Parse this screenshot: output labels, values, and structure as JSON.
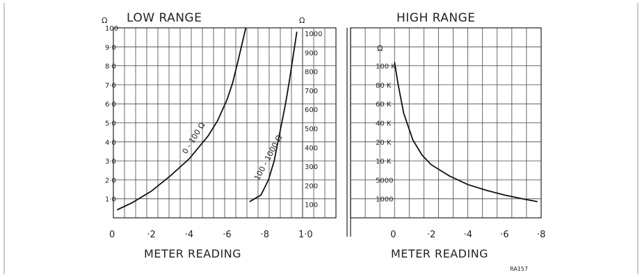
{
  "chart_data": [
    {
      "type": "line",
      "title": "LOW RANGE",
      "xlabel": "METER READING",
      "x_ticks": [
        "0",
        "·2",
        "·4",
        "·6",
        "·8",
        "1·0"
      ],
      "xlim": [
        0,
        1.0
      ],
      "ylim": [
        0,
        100
      ],
      "y_unit": "Ω",
      "y_ticks": [
        "1·0",
        "2·0",
        "3·0",
        "4·0",
        "5·0",
        "6·0",
        "7·0",
        "8·0",
        "9·0",
        "100"
      ],
      "y2_unit": "Ω",
      "y2_ticks": [
        "100",
        "200",
        "300",
        "400",
        "500",
        "600",
        "700",
        "800",
        "900",
        "1000"
      ],
      "grid": true,
      "series": [
        {
          "name": "0 - 100 Ω",
          "x": [
            0.02,
            0.1,
            0.2,
            0.3,
            0.4,
            0.5,
            0.55,
            0.6,
            0.63,
            0.66,
            0.7
          ],
          "y": [
            4.2,
            8,
            14,
            22,
            31,
            43,
            51,
            62,
            71,
            83,
            100
          ]
        },
        {
          "name": "100 - 1000 Ω",
          "x": [
            0.72,
            0.78,
            0.82,
            0.85,
            0.87,
            0.89,
            0.91,
            0.93,
            0.95,
            0.97
          ],
          "y": [
            85,
            120,
            200,
            300,
            400,
            500,
            600,
            720,
            850,
            980
          ]
        }
      ]
    },
    {
      "type": "line",
      "title": "HIGH RANGE",
      "xlabel": "METER READING",
      "x_ticks": [
        "0",
        "·2",
        "·4",
        "·6",
        "·8"
      ],
      "xlim": [
        0,
        0.8
      ],
      "y_unit": "Ω",
      "y_ticks": [
        "1000",
        "5000",
        "10 K",
        "20 K",
        "40 K",
        "60 K",
        "80 K",
        "100 K"
      ],
      "grid": true,
      "series": [
        {
          "x": [
            0.0,
            0.02,
            0.05,
            0.1,
            0.15,
            0.2,
            0.3,
            0.4,
            0.5,
            0.6,
            0.7,
            0.78
          ],
          "y": [
            8.2,
            7.0,
            5.5,
            4.1,
            3.3,
            2.8,
            2.2,
            1.75,
            1.45,
            1.2,
            1.0,
            0.85
          ]
        }
      ]
    }
  ],
  "annotations": {
    "ref_code": "RA157"
  }
}
